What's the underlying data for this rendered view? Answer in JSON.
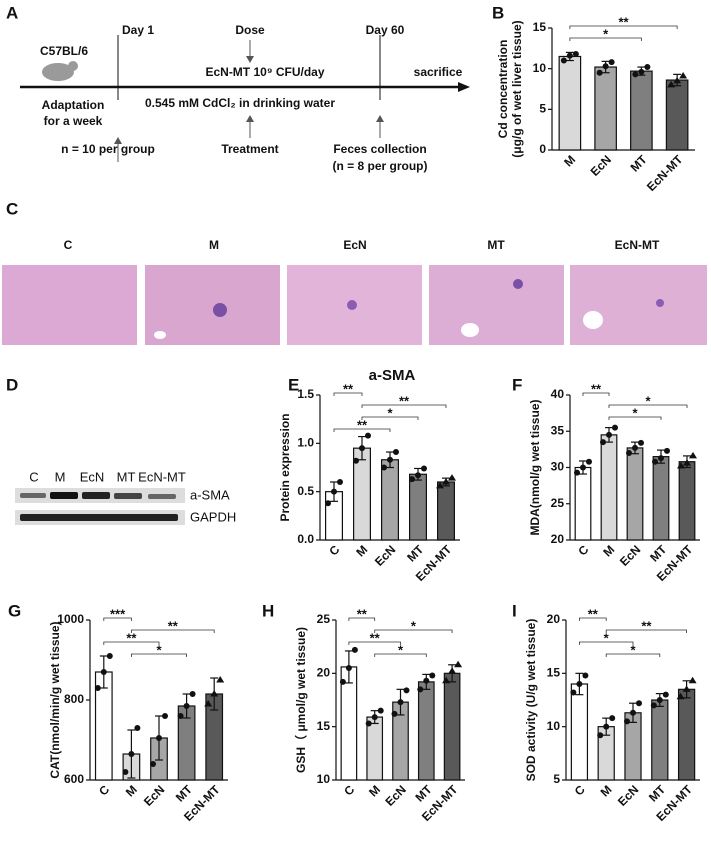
{
  "timeline": {
    "panel": "A",
    "strain": "C57BL/6",
    "day_start": "Day 1",
    "dose": "Dose",
    "day_end": "Day 60",
    "treatment_detail": "EcN-MT  10⁹ CFU/day",
    "endpoint": "sacrifice",
    "adaptation": [
      "Adaptation",
      "for a week"
    ],
    "exposure": "0.545 mM CdCl₂ in drinking water",
    "group_size": "n = 10 per group",
    "treatment": "Treatment",
    "feces": [
      "Feces collection",
      "(n = 8 per group)"
    ]
  },
  "histology": {
    "panel": "C",
    "groups": [
      "C",
      "M",
      "EcN",
      "MT",
      "EcN-MT"
    ]
  },
  "western_blot": {
    "panel": "D",
    "lanes": [
      "C",
      "M",
      "EcN",
      "MT",
      "EcN-MT"
    ],
    "proteins": [
      "a-SMA",
      "GAPDH"
    ]
  },
  "chart_data": [
    {
      "type": "bar",
      "panel": "B",
      "y_label": [
        "Cd concentration",
        "(μg/g of wet liver tissue)"
      ],
      "categories": [
        "M",
        "EcN",
        "MT",
        "EcN-MT"
      ],
      "values": [
        11.5,
        10.2,
        9.7,
        8.6
      ],
      "errors": [
        0.5,
        0.7,
        0.5,
        0.7
      ],
      "points": [
        [
          11.0,
          11.6,
          11.8
        ],
        [
          9.5,
          10.3,
          10.8
        ],
        [
          9.3,
          9.6,
          10.2
        ],
        [
          8.0,
          8.5,
          9.1
        ]
      ],
      "colors": [
        "#d9d9d9",
        "#a6a6a6",
        "#7f7f7f",
        "#595959"
      ],
      "ylim": [
        0,
        15
      ],
      "yticks": [
        0,
        5,
        10,
        15
      ],
      "comparisons": [
        {
          "from": "M",
          "to": "EcN-MT",
          "label": "**"
        },
        {
          "from": "M",
          "to": "MT",
          "label": "*"
        }
      ]
    },
    {
      "type": "bar",
      "panel": "E",
      "title": "a-SMA",
      "y_label": [
        "Protein expression"
      ],
      "categories": [
        "C",
        "M",
        "EcN",
        "MT",
        "EcN-MT"
      ],
      "values": [
        0.5,
        0.95,
        0.83,
        0.68,
        0.6
      ],
      "errors": [
        0.1,
        0.12,
        0.08,
        0.06,
        0.04
      ],
      "points": [
        [
          0.38,
          0.5,
          0.6
        ],
        [
          0.82,
          0.95,
          1.08
        ],
        [
          0.75,
          0.83,
          0.91
        ],
        [
          0.63,
          0.67,
          0.74
        ],
        [
          0.56,
          0.6,
          0.64
        ]
      ],
      "colors": [
        "#ffffff",
        "#d9d9d9",
        "#a6a6a6",
        "#7f7f7f",
        "#595959"
      ],
      "ylim": [
        0,
        1.5
      ],
      "yticks": [
        {
          "value": 0,
          "label": "0.0"
        },
        0.5,
        {
          "value": 1,
          "label": "1.0"
        },
        1.5
      ],
      "comparisons": [
        {
          "from": "C",
          "to": "M",
          "label": "**"
        },
        {
          "from": "M",
          "to": "EcN-MT",
          "label": "**"
        },
        {
          "from": "M",
          "to": "MT",
          "label": "*"
        },
        {
          "from": "C",
          "to": "EcN",
          "label": "**"
        }
      ]
    },
    {
      "type": "bar",
      "panel": "F",
      "y_label": [
        "MDA(nmol/g wet tissue)"
      ],
      "categories": [
        "C",
        "M",
        "EcN",
        "MT",
        "EcN-MT"
      ],
      "values": [
        30,
        34.5,
        32.7,
        31.5,
        30.8
      ],
      "errors": [
        0.9,
        1.0,
        0.8,
        0.9,
        0.8
      ],
      "points": [
        [
          29.3,
          30,
          30.8
        ],
        [
          33.5,
          34.5,
          35.5
        ],
        [
          32,
          32.7,
          33.4
        ],
        [
          30.8,
          31.3,
          32.3
        ],
        [
          30.2,
          30.6,
          31.6
        ]
      ],
      "colors": [
        "#ffffff",
        "#d9d9d9",
        "#a6a6a6",
        "#7f7f7f",
        "#595959"
      ],
      "ylim": [
        20,
        40
      ],
      "yticks": [
        20,
        25,
        30,
        35,
        40
      ],
      "comparisons": [
        {
          "from": "C",
          "to": "M",
          "label": "**"
        },
        {
          "from": "M",
          "to": "EcN-MT",
          "label": "*"
        },
        {
          "from": "M",
          "to": "MT",
          "label": "*"
        }
      ]
    },
    {
      "type": "bar",
      "panel": "G",
      "y_label": [
        "CAT(nmol/min/g wet tissue)"
      ],
      "categories": [
        "C",
        "M",
        "EcN",
        "MT",
        "EcN-MT"
      ],
      "values": [
        870,
        665,
        705,
        785,
        815
      ],
      "errors": [
        40,
        60,
        55,
        30,
        40
      ],
      "points": [
        [
          830,
          870,
          910
        ],
        [
          620,
          665,
          730
        ],
        [
          640,
          705,
          760
        ],
        [
          760,
          785,
          815
        ],
        [
          790,
          815,
          850
        ]
      ],
      "colors": [
        "#ffffff",
        "#d9d9d9",
        "#a6a6a6",
        "#7f7f7f",
        "#595959"
      ],
      "ylim": [
        600,
        1000
      ],
      "yticks": [
        600,
        800,
        1000
      ],
      "comparisons": [
        {
          "from": "C",
          "to": "M",
          "label": "***"
        },
        {
          "from": "M",
          "to": "EcN-MT",
          "label": "**"
        },
        {
          "from": "C",
          "to": "EcN",
          "label": "**"
        },
        {
          "from": "M",
          "to": "MT",
          "label": "*"
        }
      ]
    },
    {
      "type": "bar",
      "panel": "H",
      "y_label": [
        "GSH（ μmol/g wet tissue)"
      ],
      "categories": [
        "C",
        "M",
        "EcN",
        "MT",
        "EcN-MT"
      ],
      "values": [
        20.6,
        15.9,
        17.3,
        19.2,
        20.0
      ],
      "errors": [
        1.5,
        0.6,
        1.2,
        0.7,
        0.8
      ],
      "points": [
        [
          19.2,
          20.5,
          22.2
        ],
        [
          15.3,
          15.9,
          16.5
        ],
        [
          16.2,
          17.3,
          18.4
        ],
        [
          18.5,
          19.3,
          19.8
        ],
        [
          19.3,
          20.2,
          20.8
        ]
      ],
      "colors": [
        "#ffffff",
        "#d9d9d9",
        "#a6a6a6",
        "#7f7f7f",
        "#595959"
      ],
      "ylim": [
        10,
        25
      ],
      "yticks": [
        10,
        15,
        20,
        25
      ],
      "comparisons": [
        {
          "from": "C",
          "to": "M",
          "label": "**"
        },
        {
          "from": "M",
          "to": "EcN-MT",
          "label": "*"
        },
        {
          "from": "C",
          "to": "EcN",
          "label": "**"
        },
        {
          "from": "M",
          "to": "MT",
          "label": "*"
        }
      ]
    },
    {
      "type": "bar",
      "panel": "I",
      "y_label": [
        "SOD activity (U/g wet tissue)"
      ],
      "categories": [
        "C",
        "M",
        "EcN",
        "MT",
        "EcN-MT"
      ],
      "values": [
        14,
        10,
        11.3,
        12.5,
        13.5
      ],
      "errors": [
        1.0,
        0.8,
        0.9,
        0.6,
        0.8
      ],
      "points": [
        [
          13.2,
          14,
          14.8
        ],
        [
          9.2,
          10,
          10.8
        ],
        [
          10.5,
          11.3,
          12.2
        ],
        [
          12,
          12.5,
          13
        ],
        [
          12.8,
          13.5,
          14.3
        ]
      ],
      "colors": [
        "#ffffff",
        "#d9d9d9",
        "#a6a6a6",
        "#7f7f7f",
        "#595959"
      ],
      "ylim": [
        5,
        20
      ],
      "yticks": [
        5,
        10,
        15,
        20
      ],
      "comparisons": [
        {
          "from": "C",
          "to": "M",
          "label": "**"
        },
        {
          "from": "M",
          "to": "EcN-MT",
          "label": "**"
        },
        {
          "from": "C",
          "to": "EcN",
          "label": "*"
        },
        {
          "from": "M",
          "to": "MT",
          "label": "*"
        }
      ]
    }
  ]
}
